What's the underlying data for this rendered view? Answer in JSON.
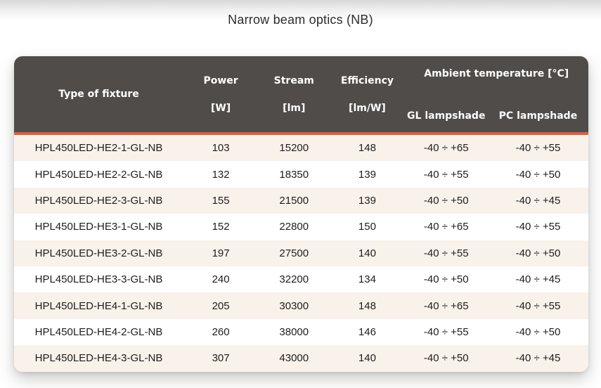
{
  "page": {
    "title": "Narrow beam optics (NB)"
  },
  "colors": {
    "header_bg": "#4f4c4a",
    "header_text": "#ffffff",
    "accent_line": "#df5f3d",
    "row_alt_bg": "#f8f2eb",
    "row_bg": "#ffffff",
    "body_text": "#1d1d1d"
  },
  "table": {
    "columns": {
      "type": "Type of fixture",
      "power": {
        "label": "Power",
        "unit": "[W]"
      },
      "stream": {
        "label": "Stream",
        "unit": "[lm]"
      },
      "efficiency": {
        "label": "Efficiency",
        "unit": "[lm/W]"
      },
      "ambient": {
        "label": "Ambient temperature [°C]",
        "gl": "GL lampshade",
        "pc": "PC lampshade"
      }
    },
    "rows": [
      [
        "HPL450LED-HE2-1-GL-NB",
        "103",
        "15200",
        "148",
        "-40 ÷ +65",
        "-40 ÷ +55"
      ],
      [
        "HPL450LED-HE2-2-GL-NB",
        "132",
        "18350",
        "139",
        "-40 ÷ +55",
        "-40 ÷ +50"
      ],
      [
        "HPL450LED-HE2-3-GL-NB",
        "155",
        "21500",
        "139",
        "-40 ÷ +50",
        "-40 ÷ +45"
      ],
      [
        "HPL450LED-HE3-1-GL-NB",
        "152",
        "22800",
        "150",
        "-40 ÷ +65",
        "-40 ÷ +55"
      ],
      [
        "HPL450LED-HE3-2-GL-NB",
        "197",
        "27500",
        "140",
        "-40 ÷ +55",
        "-40 ÷ +50"
      ],
      [
        "HPL450LED-HE3-3-GL-NB",
        "240",
        "32200",
        "134",
        "-40 ÷ +50",
        "-40 ÷ +45"
      ],
      [
        "HPL450LED-HE4-1-GL-NB",
        "205",
        "30300",
        "148",
        "-40 ÷ +65",
        "-40 ÷ +55"
      ],
      [
        "HPL450LED-HE4-2-GL-NB",
        "260",
        "38000",
        "146",
        "-40 ÷ +55",
        "-40 ÷ +50"
      ],
      [
        "HPL450LED-HE4-3-GL-NB",
        "307",
        "43000",
        "140",
        "-40 ÷ +50",
        "-40 ÷ +45"
      ]
    ]
  }
}
